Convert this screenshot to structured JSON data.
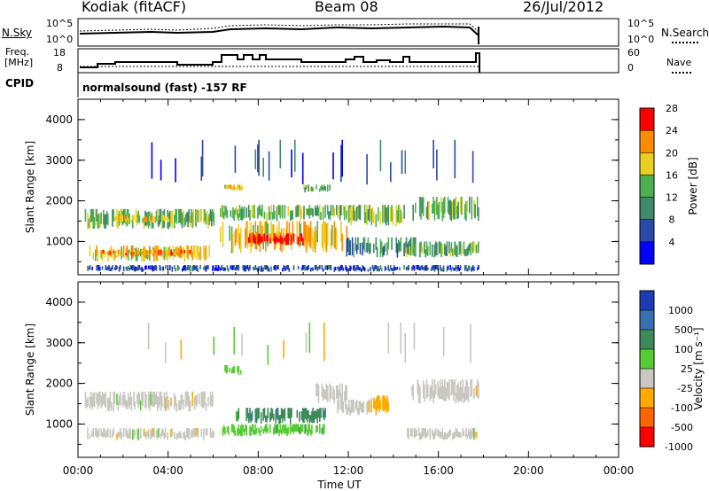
{
  "header": {
    "station": "Kodiak (fitACF)",
    "beam": "Beam 08",
    "date": "26/Jul/2012"
  },
  "sky_panel": {
    "left_label": "N.Sky",
    "right_label": "N.Search",
    "left_ticks": [
      "10^5",
      "10^0"
    ],
    "right_ticks": [
      "10^5",
      "10^0"
    ]
  },
  "freq_panel": {
    "left_label_line1": "Freq.",
    "left_label_line2": "[MHz]",
    "right_label": "Nave",
    "left_ticks": [
      "18",
      "8"
    ],
    "right_ticks": [
      "60",
      "0"
    ]
  },
  "cpid": {
    "label": "CPID",
    "text": "normalsound (fast) -157 RF"
  },
  "chart_data": [
    {
      "type": "heatmap",
      "title": "",
      "xlabel": "Time UT",
      "ylabel": "Slant Range [km]",
      "xlim": [
        0,
        24
      ],
      "ylim": [
        180,
        4500
      ],
      "xticks": [
        "00:00",
        "04:00",
        "08:00",
        "12:00",
        "16:00",
        "20:00",
        "00:00"
      ],
      "yticks": [
        "1000",
        "2000",
        "3000",
        "4000"
      ],
      "colorbar": {
        "label": "Power [dB]",
        "ticks": [
          "4",
          "8",
          "12",
          "16",
          "20",
          "24",
          "28"
        ],
        "colors": [
          "#0000ff",
          "#2a4aa8",
          "#3f8a6a",
          "#4caf50",
          "#e8d020",
          "#ff8c00",
          "#ff0000"
        ]
      },
      "data_extent_hours": [
        0,
        18
      ],
      "bands": [
        {
          "t0": 0.4,
          "t1": 17.8,
          "r0": 250,
          "r1": 420,
          "level": 1
        },
        {
          "t0": 0.5,
          "t1": 5.8,
          "r0": 500,
          "r1": 900,
          "level": 4
        },
        {
          "t0": 1.0,
          "t1": 5.0,
          "r0": 650,
          "r1": 800,
          "level": 5
        },
        {
          "t0": 0.3,
          "t1": 6.0,
          "r0": 1300,
          "r1": 1800,
          "level": 3
        },
        {
          "t0": 1.5,
          "t1": 4.0,
          "r0": 1450,
          "r1": 1650,
          "level": 4
        },
        {
          "t0": 6.3,
          "t1": 12.0,
          "r0": 700,
          "r1": 1500,
          "level": 4
        },
        {
          "t0": 7.5,
          "t1": 10.0,
          "r0": 900,
          "r1": 1200,
          "level": 6
        },
        {
          "t0": 8.5,
          "t1": 9.4,
          "r0": 950,
          "r1": 1100,
          "level": 7
        },
        {
          "t0": 6.3,
          "t1": 12.5,
          "r0": 1500,
          "r1": 1900,
          "level": 3
        },
        {
          "t0": 6.5,
          "t1": 7.3,
          "r0": 2250,
          "r1": 2400,
          "level": 4
        },
        {
          "t0": 10.0,
          "t1": 11.2,
          "r0": 2200,
          "r1": 2400,
          "level": 3
        },
        {
          "t0": 11.8,
          "t1": 15.0,
          "r0": 600,
          "r1": 1100,
          "level": 2
        },
        {
          "t0": 12.0,
          "t1": 14.5,
          "r0": 1350,
          "r1": 1900,
          "level": 3
        },
        {
          "t0": 14.5,
          "t1": 17.8,
          "r0": 600,
          "r1": 1000,
          "level": 3
        },
        {
          "t0": 14.8,
          "t1": 17.8,
          "r0": 1500,
          "r1": 2100,
          "level": 3
        },
        {
          "t0": 3.0,
          "t1": 17.8,
          "r0": 2400,
          "r1": 3500,
          "level": 1,
          "sparse": true
        }
      ]
    },
    {
      "type": "heatmap",
      "title": "",
      "xlabel": "Time UT",
      "ylabel": "Slant Range [km]",
      "xlim": [
        0,
        24
      ],
      "ylim": [
        180,
        4500
      ],
      "xticks": [
        "00:00",
        "04:00",
        "08:00",
        "12:00",
        "16:00",
        "20:00",
        "00:00"
      ],
      "yticks": [
        "1000",
        "2000",
        "3000",
        "4000"
      ],
      "colorbar": {
        "label": "Velocity [m s⁻¹]",
        "ticks": [
          "1000",
          "500",
          "100",
          "25",
          "-25",
          "-100",
          "-500",
          "-1000"
        ],
        "colors": [
          "#1e3cb4",
          "#3a6fb0",
          "#3f8a5a",
          "#55cc33",
          "#c8c8c0",
          "#ffaa00",
          "#ff6600",
          "#ff0000"
        ]
      },
      "data_extent_hours": [
        0,
        18
      ],
      "bands": [
        {
          "t0": 0.4,
          "t1": 6.0,
          "r0": 600,
          "r1": 900,
          "level": 4
        },
        {
          "t0": 0.3,
          "t1": 6.0,
          "r0": 1300,
          "r1": 1800,
          "level": 4
        },
        {
          "t0": 6.4,
          "t1": 11.0,
          "r0": 700,
          "r1": 1000,
          "level": 3
        },
        {
          "t0": 7.0,
          "t1": 11.0,
          "r0": 1000,
          "r1": 1400,
          "level": 2
        },
        {
          "t0": 6.5,
          "t1": 7.2,
          "r0": 2200,
          "r1": 2450,
          "level": 3
        },
        {
          "t0": 11.5,
          "t1": 13.0,
          "r0": 1200,
          "r1": 1600,
          "level": 4
        },
        {
          "t0": 12.8,
          "t1": 13.8,
          "r0": 1200,
          "r1": 1700,
          "level": 5
        },
        {
          "t0": 14.5,
          "t1": 17.8,
          "r0": 600,
          "r1": 900,
          "level": 4
        },
        {
          "t0": 14.8,
          "t1": 17.8,
          "r0": 1500,
          "r1": 2100,
          "level": 4
        },
        {
          "t0": 10.5,
          "t1": 12.0,
          "r0": 1500,
          "r1": 2000,
          "level": 4
        },
        {
          "t0": 3.0,
          "t1": 17.8,
          "r0": 2400,
          "r1": 3500,
          "level": 4,
          "sparse": true
        }
      ]
    }
  ]
}
